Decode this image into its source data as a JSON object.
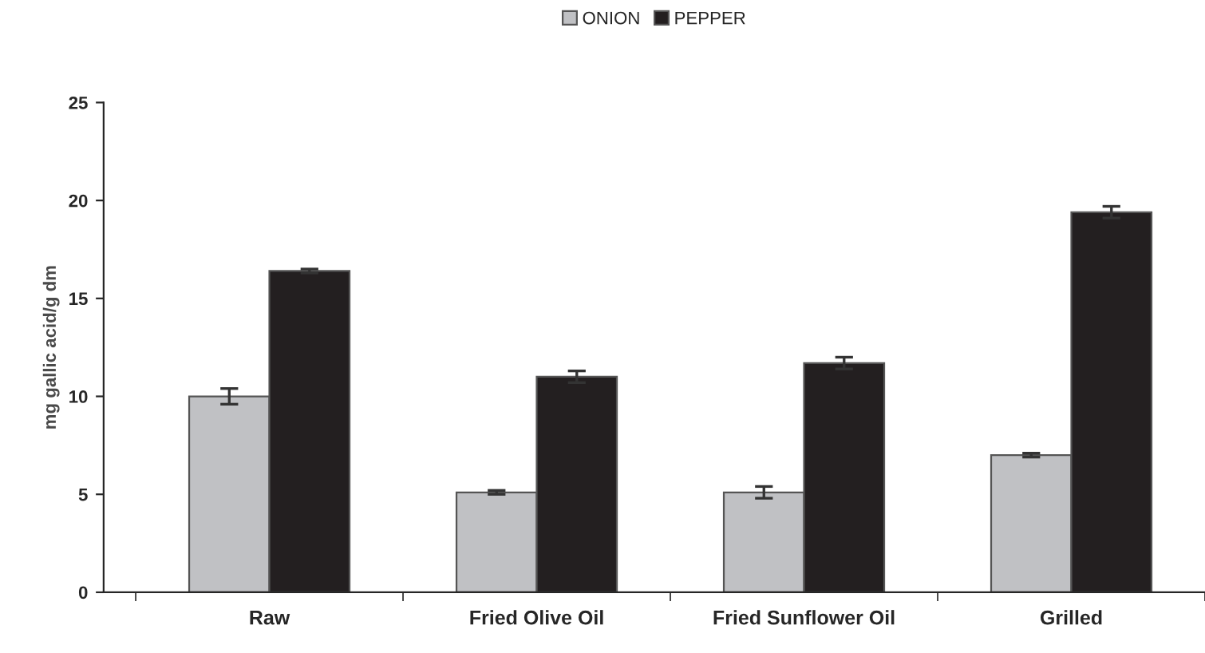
{
  "chart_data": {
    "type": "bar",
    "ylabel": "mg gallic acid/g dm",
    "categories": [
      "Raw",
      "Fried Olive Oil",
      "Fried Sunflower Oil",
      "Grilled"
    ],
    "series": [
      {
        "name": "ONION",
        "color": "#c0c1c4",
        "values": [
          10.0,
          5.1,
          5.1,
          7.0
        ],
        "errors": [
          0.4,
          0.1,
          0.3,
          0.1
        ]
      },
      {
        "name": "PEPPER",
        "color": "#231f20",
        "values": [
          16.4,
          11.0,
          11.7,
          19.4
        ],
        "errors": [
          0.1,
          0.3,
          0.3,
          0.3
        ]
      }
    ],
    "ylim": [
      0,
      25
    ],
    "yticks": [
      0,
      5,
      10,
      15,
      20,
      25
    ],
    "grid": false,
    "legend": "top"
  }
}
